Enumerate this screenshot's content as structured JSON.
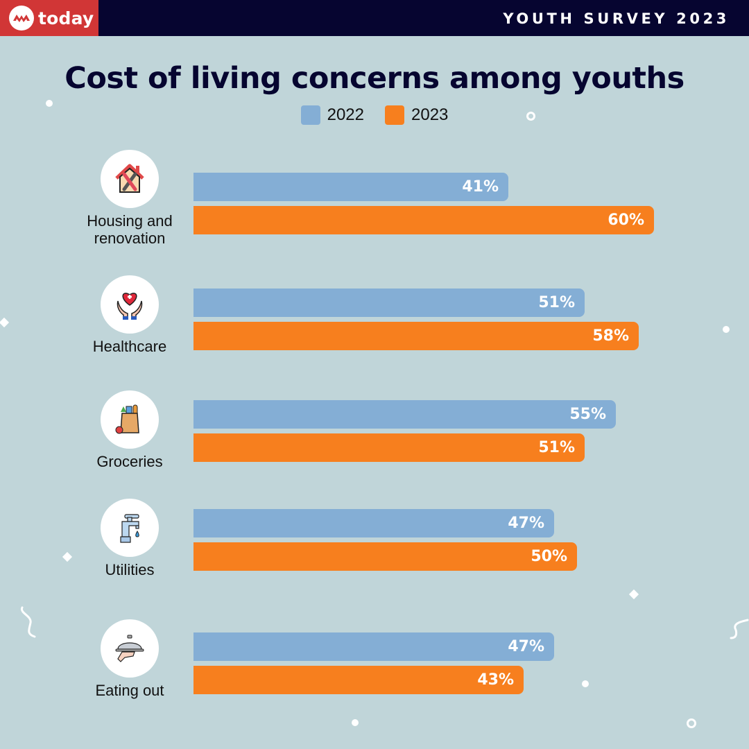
{
  "header": {
    "brand_name": "today",
    "brand_logo_icon": "today-logo-icon",
    "survey_tag": "YOUTH SURVEY 2023"
  },
  "colors": {
    "series_2022": "#84aed5",
    "series_2023": "#f77f1e",
    "title": "#060530",
    "background": "#c0d5d9",
    "brand_red": "#d13636",
    "topbar": "#060530"
  },
  "chart_data": {
    "type": "bar",
    "orientation": "horizontal",
    "title": "Cost of living concerns among youths",
    "xlabel": "",
    "ylabel": "",
    "xlim": [
      0,
      60
    ],
    "grid": false,
    "legend_position": "top-center",
    "unit": "%",
    "categories": [
      "Housing and renovation",
      "Healthcare",
      "Groceries",
      "Utilities",
      "Eating out"
    ],
    "category_icons": [
      "house-repair-icon",
      "healthcare-hands-heart-icon",
      "grocery-bag-icon",
      "water-tap-icon",
      "food-cloche-icon"
    ],
    "series": [
      {
        "name": "2022",
        "values": [
          41,
          51,
          55,
          47,
          47
        ]
      },
      {
        "name": "2023",
        "values": [
          60,
          58,
          51,
          50,
          43
        ]
      }
    ]
  },
  "labels": {
    "categories": [
      [
        "Housing and",
        "renovation"
      ],
      [
        "Healthcare"
      ],
      [
        "Groceries"
      ],
      [
        "Utilities"
      ],
      [
        "Eating out"
      ]
    ]
  }
}
